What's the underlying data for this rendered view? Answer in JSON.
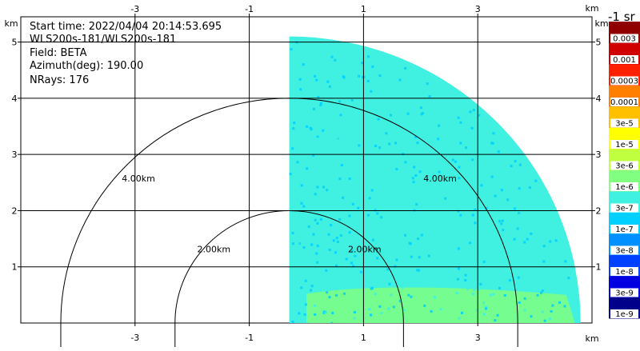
{
  "chart_data": {
    "type": "heatmap",
    "subtype": "radar-ppi-sector",
    "field": "BETA",
    "info": {
      "start_time": "Start time: 2022/04/04 20:14:53.695",
      "instrument": "WLS200s-181/WLS200s-181",
      "field": "Field: BETA",
      "azimuth": "Azimuth(deg): 190.00",
      "nrays": "NRays: 176"
    },
    "axes": {
      "x_unit": "km",
      "y_unit": "km",
      "xlim": [
        -5.0,
        5.0
      ],
      "ylim": [
        0.0,
        5.45
      ],
      "x_ticks": [
        -3,
        -1,
        1,
        3
      ],
      "y_ticks": [
        1,
        2,
        3,
        4,
        5
      ],
      "grid": true
    },
    "range_rings": [
      {
        "radius_km": 2,
        "label": "2.00km"
      },
      {
        "radius_km": 4,
        "label": "4.00km"
      }
    ],
    "sector": {
      "origin_x_km": -0.3,
      "origin_y_km": 0.0,
      "radius_km": 5.1,
      "azimuth_range_deg": [
        0,
        90
      ],
      "dominant_level": "3e-7",
      "near_ground_level": "1e-6",
      "speckle_levels": [
        "3e-7",
        "1e-7"
      ]
    },
    "colorbar": {
      "title": "-1 sr",
      "levels": [
        "1e-9",
        "3e-9",
        "1e-8",
        "3e-8",
        "1e-7",
        "3e-7",
        "1e-6",
        "3e-6",
        "1e-5",
        "3e-5",
        "0.0001",
        "0.0003",
        "0.001",
        "0.003"
      ],
      "colors": [
        "#00008b",
        "#0000e0",
        "#0040ff",
        "#0090ff",
        "#00d0ff",
        "#40f0e0",
        "#80ff80",
        "#c0ff40",
        "#ffff00",
        "#ffc000",
        "#ff8000",
        "#ff2000",
        "#d00000",
        "#900000"
      ]
    }
  }
}
